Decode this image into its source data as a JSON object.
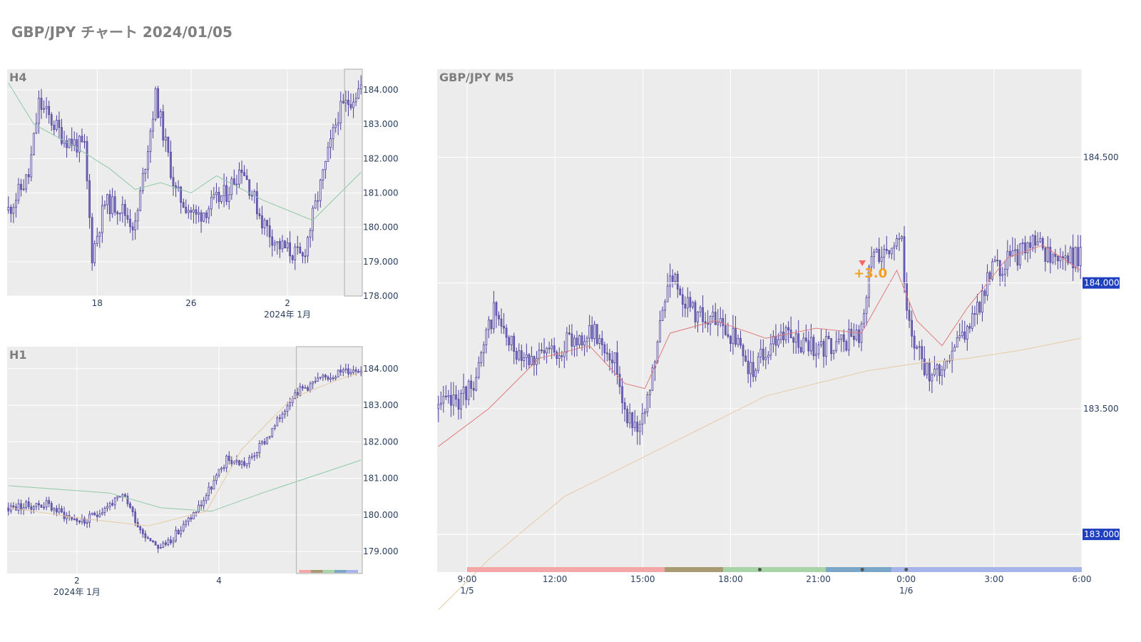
{
  "page": {
    "title": "GBP/JPY チャート 2024/01/05"
  },
  "colors": {
    "candle": "#7b6fc4",
    "candle_dark": "#4b3f9a",
    "ma_short": "#e07a7a",
    "ma_mid": "#8fc9a8",
    "ma_long": "#e8c9a0",
    "panel_bg": "#ececec",
    "grid": "#ffffff",
    "price_tag": "#1f3fbf",
    "signal": "#f0a020",
    "marker": "#ff6666"
  },
  "chart_data": [
    {
      "id": "h4",
      "type": "candlestick",
      "title": "H4",
      "ylim": [
        178.0,
        184.6
      ],
      "y_ticks": [
        "178.000",
        "179.000",
        "180.000",
        "181.000",
        "182.000",
        "183.000",
        "184.000"
      ],
      "x_ticks": [
        "18",
        "26",
        "2"
      ],
      "x_tick_index": [
        35,
        72,
        110
      ],
      "x_sublabel": "2024年 1月",
      "n_bars": 140,
      "path_anchors": [
        [
          0,
          180.5
        ],
        [
          8,
          181.5
        ],
        [
          12,
          183.6
        ],
        [
          22,
          182.6
        ],
        [
          30,
          182.3
        ],
        [
          33,
          179.2
        ],
        [
          38,
          180.7
        ],
        [
          44,
          180.6
        ],
        [
          50,
          180.0
        ],
        [
          58,
          183.8
        ],
        [
          66,
          181.0
        ],
        [
          74,
          180.3
        ],
        [
          86,
          181.0
        ],
        [
          92,
          181.8
        ],
        [
          100,
          180.2
        ],
        [
          106,
          179.5
        ],
        [
          116,
          179.1
        ],
        [
          124,
          181.5
        ],
        [
          130,
          183.3
        ],
        [
          139,
          184.1
        ]
      ],
      "ma": [
        [
          0,
          184.2
        ],
        [
          10,
          183.0
        ],
        [
          25,
          182.4
        ],
        [
          40,
          181.7
        ],
        [
          50,
          181.1
        ],
        [
          60,
          181.3
        ],
        [
          72,
          181.0
        ],
        [
          82,
          181.5
        ],
        [
          100,
          180.8
        ],
        [
          120,
          180.2
        ],
        [
          139,
          181.6
        ]
      ],
      "highlight_start": 133
    },
    {
      "id": "h1",
      "type": "candlestick",
      "title": "H1",
      "ylim": [
        178.4,
        184.6
      ],
      "y_ticks": [
        "179.000",
        "180.000",
        "181.000",
        "182.000",
        "183.000",
        "184.000"
      ],
      "x_ticks": [
        "2",
        "4"
      ],
      "x_tick_index": [
        27,
        83
      ],
      "x_sublabel": "2024年 1月",
      "n_bars": 140,
      "path_anchors": [
        [
          0,
          180.2
        ],
        [
          15,
          180.3
        ],
        [
          22,
          180.0
        ],
        [
          30,
          179.8
        ],
        [
          40,
          180.3
        ],
        [
          46,
          180.5
        ],
        [
          52,
          179.6
        ],
        [
          60,
          179.1
        ],
        [
          68,
          179.6
        ],
        [
          76,
          180.3
        ],
        [
          86,
          181.5
        ],
        [
          94,
          181.4
        ],
        [
          104,
          182.3
        ],
        [
          112,
          183.3
        ],
        [
          120,
          183.6
        ],
        [
          130,
          183.9
        ],
        [
          139,
          184.0
        ]
      ],
      "ma": [
        [
          0,
          180.8
        ],
        [
          40,
          180.6
        ],
        [
          60,
          180.2
        ],
        [
          80,
          180.1
        ],
        [
          100,
          180.6
        ],
        [
          139,
          181.5
        ]
      ],
      "ma2": [
        [
          0,
          180.2
        ],
        [
          30,
          179.9
        ],
        [
          55,
          179.7
        ],
        [
          78,
          180.1
        ],
        [
          92,
          181.8
        ],
        [
          112,
          183.2
        ],
        [
          130,
          183.7
        ],
        [
          139,
          183.9
        ]
      ],
      "highlight_start": 114
    },
    {
      "id": "m5",
      "type": "candlestick",
      "title": "GBP/JPY M5",
      "ylim": [
        182.85,
        184.85
      ],
      "y_ticks": [
        "183.000",
        "183.500",
        "184.500"
      ],
      "price_tags": [
        "184.000",
        "183.000"
      ],
      "x_ticks": [
        "9:00",
        "12:00",
        "15:00",
        "18:00",
        "21:00",
        "0:00",
        "3:00",
        "6:00"
      ],
      "x_sublabels": [
        {
          "at": "9:00",
          "text": "1/5"
        },
        {
          "at": "0:00",
          "text": "1/6"
        }
      ],
      "n_bars": 256,
      "path_anchors": [
        [
          0,
          183.5
        ],
        [
          10,
          183.55
        ],
        [
          16,
          183.65
        ],
        [
          22,
          183.9
        ],
        [
          28,
          183.75
        ],
        [
          40,
          183.7
        ],
        [
          55,
          183.78
        ],
        [
          62,
          183.8
        ],
        [
          70,
          183.7
        ],
        [
          73,
          183.55
        ],
        [
          76,
          183.45
        ],
        [
          82,
          183.45
        ],
        [
          86,
          183.7
        ],
        [
          92,
          184.05
        ],
        [
          100,
          183.9
        ],
        [
          108,
          183.85
        ],
        [
          116,
          183.8
        ],
        [
          124,
          183.65
        ],
        [
          136,
          183.8
        ],
        [
          148,
          183.75
        ],
        [
          158,
          183.75
        ],
        [
          168,
          183.8
        ],
        [
          172,
          184.1
        ],
        [
          178,
          184.15
        ],
        [
          184,
          184.15
        ],
        [
          186,
          183.85
        ],
        [
          190,
          183.75
        ],
        [
          196,
          183.6
        ],
        [
          204,
          183.75
        ],
        [
          212,
          183.85
        ],
        [
          220,
          184.05
        ],
        [
          228,
          184.1
        ],
        [
          236,
          184.15
        ],
        [
          246,
          184.1
        ],
        [
          255,
          184.1
        ]
      ],
      "ma": [
        [
          0,
          183.35
        ],
        [
          20,
          183.5
        ],
        [
          40,
          183.7
        ],
        [
          60,
          183.75
        ],
        [
          74,
          183.6
        ],
        [
          82,
          183.58
        ],
        [
          92,
          183.8
        ],
        [
          110,
          183.85
        ],
        [
          130,
          183.78
        ],
        [
          150,
          183.82
        ],
        [
          168,
          183.8
        ],
        [
          182,
          184.05
        ],
        [
          190,
          183.85
        ],
        [
          200,
          183.75
        ],
        [
          210,
          183.9
        ],
        [
          226,
          184.1
        ],
        [
          240,
          184.15
        ],
        [
          255,
          184.05
        ]
      ],
      "ma2": [
        [
          0,
          182.7
        ],
        [
          20,
          182.9
        ],
        [
          50,
          183.15
        ],
        [
          80,
          183.3
        ],
        [
          110,
          183.45
        ],
        [
          130,
          183.55
        ],
        [
          150,
          183.6
        ],
        [
          170,
          183.65
        ],
        [
          190,
          183.68
        ],
        [
          210,
          183.7
        ],
        [
          230,
          183.73
        ],
        [
          255,
          183.78
        ]
      ],
      "session_bands": [
        "#f4a6a6",
        "#a89a73",
        "#a8d4a8",
        "#7aa6c8",
        "#a6b4ea"
      ],
      "session_points": [
        "9:00",
        "15:45",
        "17:45",
        "21:15",
        "23:30",
        "6:00"
      ],
      "session_dots": [
        "19:00",
        "22:30",
        "0:00"
      ],
      "signal": {
        "text": "+3.0",
        "time": "22:30",
        "price": 184.05
      }
    }
  ]
}
